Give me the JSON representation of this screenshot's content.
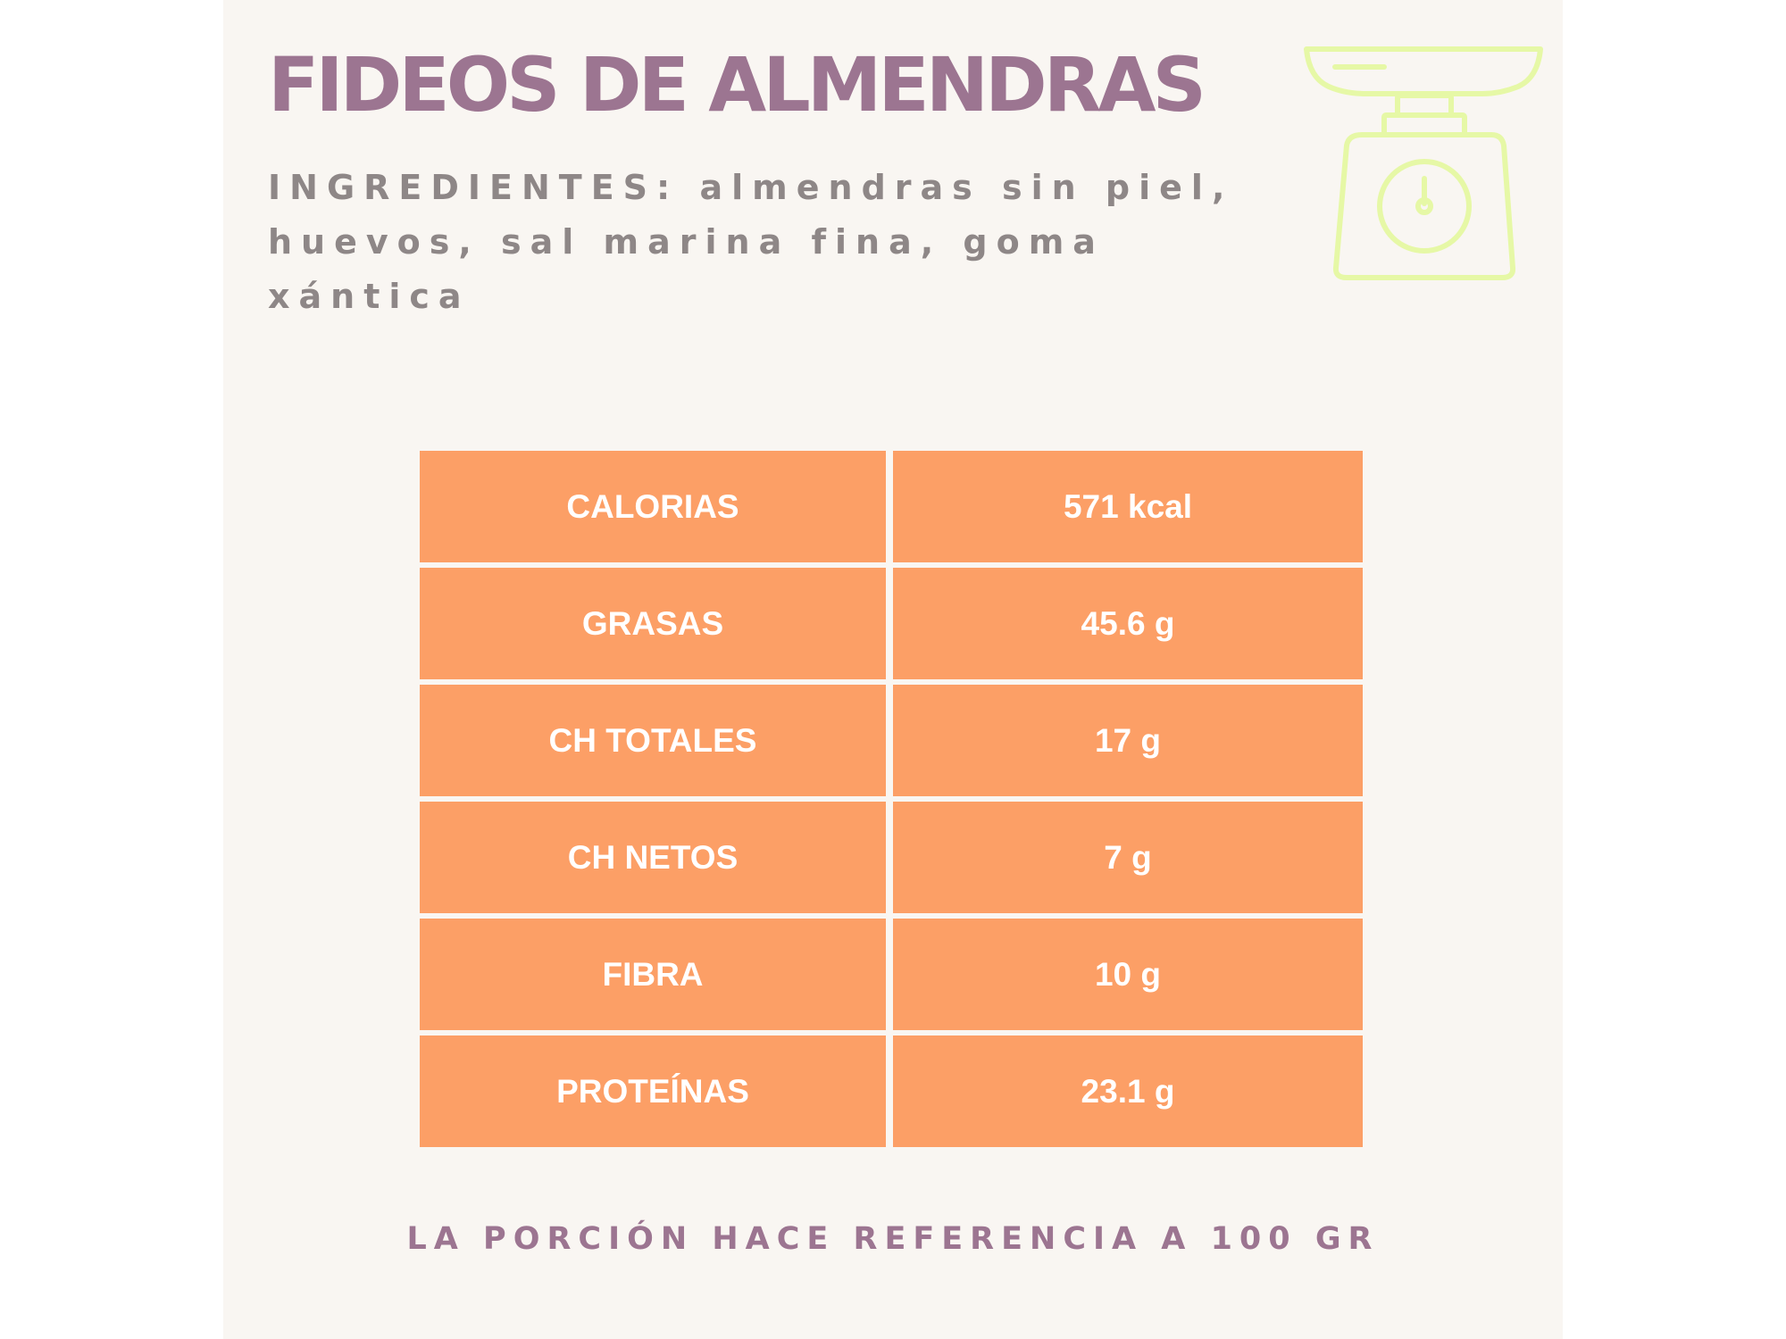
{
  "title": "FIDEOS DE ALMENDRAS",
  "ingredients": {
    "label": "INGREDIENTES:",
    "text": "almendras sin piel, huevos, sal marina fina, goma xántica"
  },
  "icon": "kitchen-scale-icon",
  "colors": {
    "background": "#f9f6f2",
    "title": "#9c7591",
    "ingredients_text": "#8e8787",
    "table_cell": "#fc9f66",
    "icon_stroke": "#e6f8a6"
  },
  "nutrition": [
    {
      "label": "CALORIAS",
      "value": "571 kcal"
    },
    {
      "label": "GRASAS",
      "value": "45.6 g"
    },
    {
      "label": "CH TOTALES",
      "value": "17 g"
    },
    {
      "label": "CH NETOS",
      "value": "7 g"
    },
    {
      "label": "FIBRA",
      "value": "10 g"
    },
    {
      "label": "PROTEÍNAS",
      "value": "23.1 g"
    }
  ],
  "footer": "LA PORCIÓN HACE REFERENCIA A 100 GR"
}
